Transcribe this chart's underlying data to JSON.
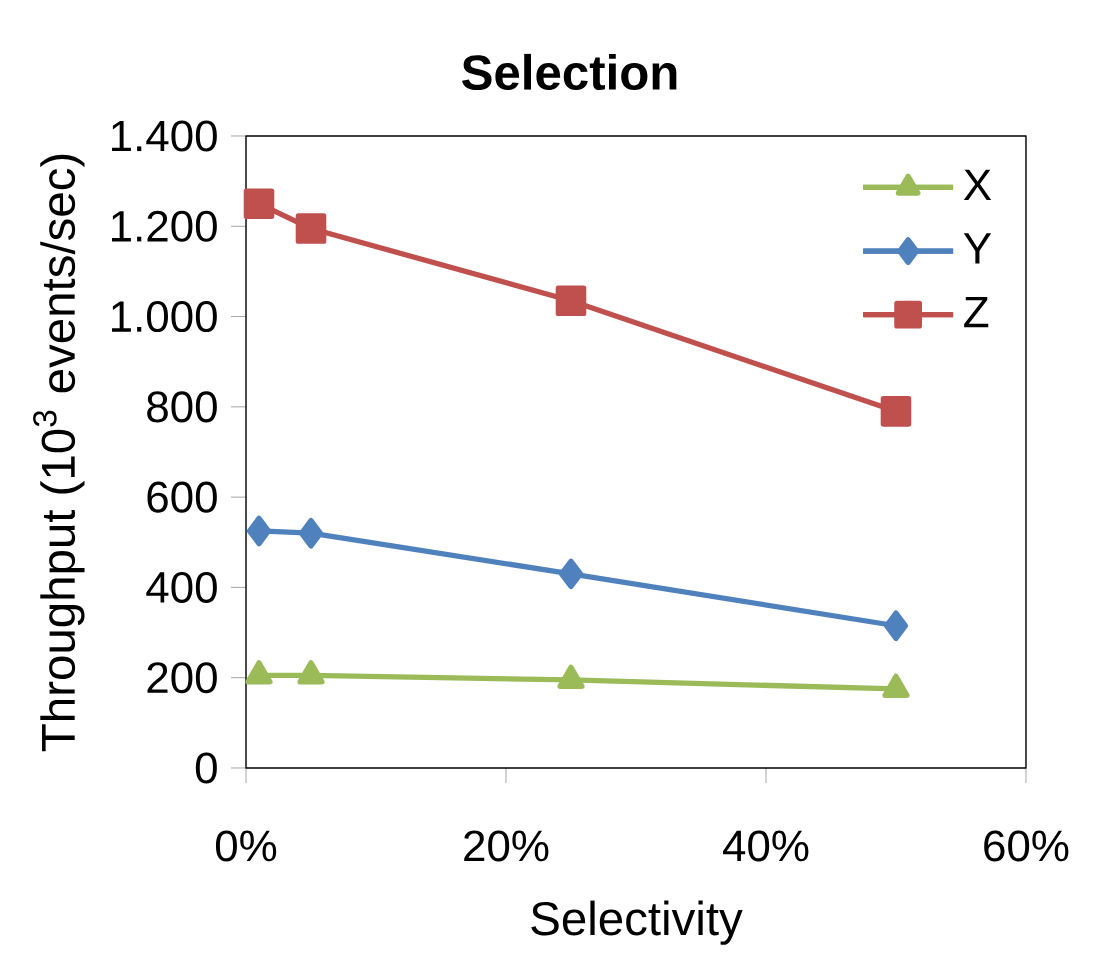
{
  "chart_data": {
    "type": "line",
    "title": "Selection",
    "xlabel": "Selectivity",
    "ylabel": "Throughput (10$^{3}$ events/sec)",
    "x": [
      1,
      5,
      25,
      50
    ],
    "series": [
      {
        "name": "X",
        "color": "#9bbb59",
        "marker": "triangle",
        "values": [
          205,
          205,
          195,
          175
        ]
      },
      {
        "name": "Y",
        "color": "#4f81bd",
        "marker": "diamond",
        "values": [
          525,
          520,
          430,
          315
        ]
      },
      {
        "name": "Z",
        "color": "#c0504d",
        "marker": "square",
        "values": [
          1250,
          1195,
          1035,
          790
        ]
      }
    ],
    "xlim": [
      0,
      60
    ],
    "xticks": [
      {
        "value": 0,
        "label": "0%"
      },
      {
        "value": 20,
        "label": "20%"
      },
      {
        "value": 40,
        "label": "40%"
      },
      {
        "value": 60,
        "label": "60%"
      }
    ],
    "ylim": [
      0,
      1400
    ],
    "yticks": [
      0,
      200,
      400,
      600,
      800,
      {
        "value": 1000,
        "label": "1.000"
      },
      {
        "value": 1200,
        "label": "1.200"
      },
      {
        "value": 1400,
        "label": "1.400"
      }
    ],
    "grid": false,
    "legend": "top right",
    "line_style": "solid"
  }
}
